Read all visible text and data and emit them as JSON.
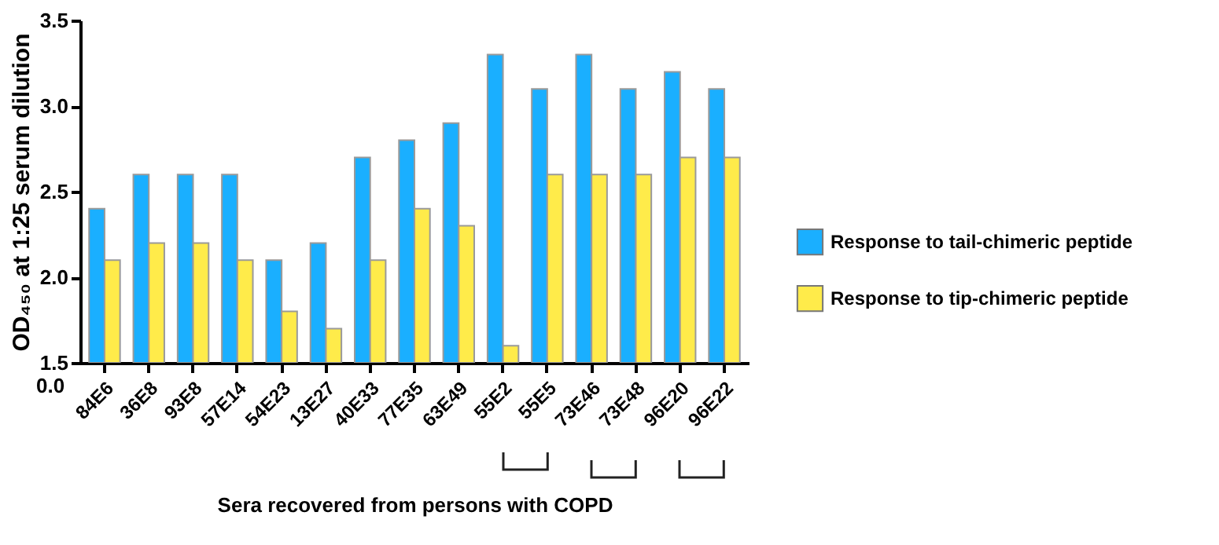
{
  "chart_data": {
    "type": "bar",
    "categories": [
      "84E6",
      "36E8",
      "93E8",
      "57E14",
      "54E23",
      "13E27",
      "40E33",
      "77E35",
      "63E49",
      "55E2",
      "55E5",
      "73E46",
      "73E48",
      "96E20",
      "96E22"
    ],
    "series": [
      {
        "name": "Response to tail-chimeric peptide",
        "color": "#1aafff",
        "values": [
          2.4,
          2.6,
          2.6,
          2.6,
          2.1,
          2.2,
          2.7,
          2.8,
          2.9,
          3.3,
          3.1,
          3.3,
          3.1,
          3.2,
          3.1
        ]
      },
      {
        "name": "Response to tip-chimeric peptide",
        "color": "#ffeb4a",
        "values": [
          2.1,
          2.2,
          2.2,
          2.1,
          1.8,
          1.7,
          2.1,
          2.4,
          2.3,
          1.6,
          2.6,
          2.6,
          2.6,
          2.7,
          2.7
        ]
      }
    ],
    "xlabel": "Sera recovered from persons with COPD",
    "ylabel": "OD₄₅₀ at 1:25 serum dilution",
    "ylim": [
      1.5,
      3.5
    ],
    "yticks": [
      1.5,
      {
        "value": 2,
        "label": "2.0"
      },
      2.5,
      {
        "value": 3,
        "label": "3.0"
      },
      3.5
    ],
    "annotations": [
      "0.0"
    ],
    "grid": false,
    "legend": "right"
  }
}
